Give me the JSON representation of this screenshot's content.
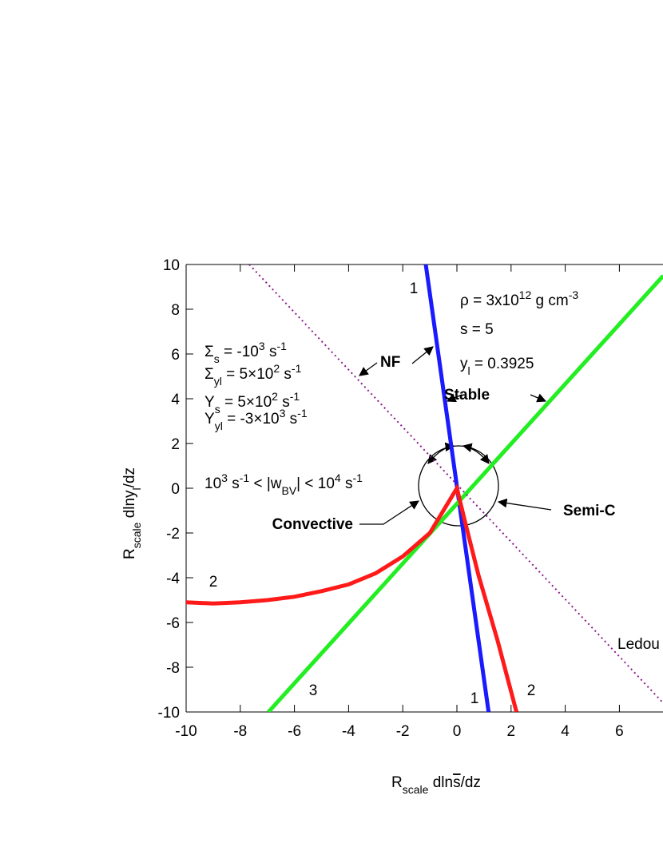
{
  "chart_data": {
    "type": "line",
    "x_label": [
      [
        "R",
        ""
      ],
      [
        "scale",
        "sub"
      ],
      [
        "  dln",
        ""
      ],
      [
        "s",
        "over"
      ],
      [
        "/dz",
        ""
      ]
    ],
    "y_label": [
      [
        "R",
        ""
      ],
      [
        "scale",
        "sub"
      ],
      [
        "  dlny",
        ""
      ],
      [
        "l",
        "sub"
      ],
      [
        "/dz",
        ""
      ]
    ],
    "xlim": [
      -10,
      8
    ],
    "ylim": [
      -10,
      10
    ],
    "xticks": [
      -10,
      -8,
      -6,
      -4,
      -2,
      0,
      2,
      4,
      6
    ],
    "yticks": [
      10,
      8,
      6,
      4,
      2,
      0,
      -2,
      -4,
      -6,
      -8,
      -10
    ],
    "series": [
      {
        "name": "1",
        "color": "#1a1aff",
        "x": [
          -1.15,
          1.17
        ],
        "values": [
          10,
          -10
        ]
      },
      {
        "name": "3",
        "color": "#22ee22",
        "x": [
          -6.96,
          7.62
        ],
        "values": [
          -10,
          9.5
        ]
      },
      {
        "name": "2",
        "color": "#ff1a1a",
        "x": [
          -10,
          -9,
          -8,
          -7,
          -6,
          -5,
          -4,
          -3,
          -2,
          -1,
          0,
          0.3,
          0.8,
          1.5,
          2.2
        ],
        "values": [
          -5.1,
          -5.15,
          -5.1,
          -5.0,
          -4.85,
          -4.6,
          -4.3,
          -3.8,
          -3.05,
          -2.0,
          0,
          -1.5,
          -3.9,
          -6.8,
          -10
        ]
      },
      {
        "name": "Ledou",
        "color": "#8b1a8b",
        "dashed": true,
        "x": [
          -7.67,
          7.62
        ],
        "values": [
          10,
          -9.6
        ]
      }
    ],
    "line_labels": [
      "1",
      "1",
      "2",
      "2",
      "3"
    ],
    "annotations": [
      [
        [
          "ρ = 3x10",
          ""
        ],
        [
          "12",
          "sup"
        ],
        [
          " g cm",
          ""
        ],
        [
          "-3",
          "sup"
        ]
      ],
      [
        [
          "s = 5",
          ""
        ]
      ],
      [
        [
          "y",
          ""
        ],
        [
          "l",
          "sub"
        ],
        [
          " = 0.3925",
          ""
        ]
      ],
      [
        [
          "Σ",
          ""
        ],
        [
          "s",
          "sub"
        ],
        [
          " = -10",
          ""
        ],
        [
          "3",
          "sup"
        ],
        [
          " s",
          ""
        ],
        [
          "-1",
          "sup"
        ]
      ],
      [
        [
          "Σ",
          ""
        ],
        [
          "yl",
          "sub"
        ],
        [
          " = 5×10",
          ""
        ],
        [
          "2",
          "sup"
        ],
        [
          " s",
          ""
        ],
        [
          "-1",
          "sup"
        ]
      ],
      [
        [
          "Υ",
          ""
        ],
        [
          "s",
          "sub"
        ],
        [
          " = 5×10",
          ""
        ],
        [
          "2",
          "sup"
        ],
        [
          " s",
          ""
        ],
        [
          "-1",
          "sup"
        ]
      ],
      [
        [
          "Υ",
          ""
        ],
        [
          "yl",
          "sub"
        ],
        [
          " = -3×10",
          ""
        ],
        [
          "3",
          "sup"
        ],
        [
          " s",
          ""
        ],
        [
          "-1",
          "sup"
        ]
      ],
      [
        [
          "10",
          ""
        ],
        [
          "3",
          "sup"
        ],
        [
          " s",
          ""
        ],
        [
          "-1",
          "sup"
        ],
        [
          " < |w",
          ""
        ],
        [
          "BV",
          "sub"
        ],
        [
          "| < 10",
          ""
        ],
        [
          "4",
          "sup"
        ],
        [
          " s",
          ""
        ],
        [
          "-1",
          "sup"
        ]
      ]
    ],
    "regions": [
      "NF",
      "Stable",
      "Convective",
      "Semi-C"
    ]
  }
}
